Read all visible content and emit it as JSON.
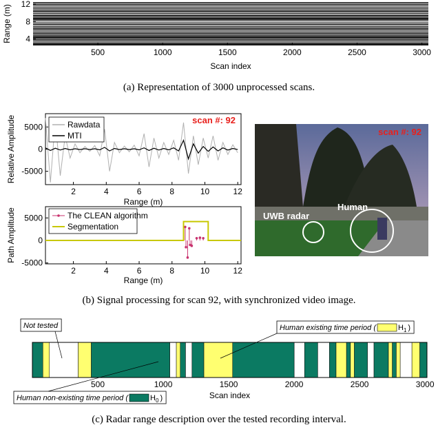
{
  "chart_data": [
    {
      "type": "image",
      "xlabel": "Scan index",
      "ylabel": "Range (m)",
      "xlim": [
        0,
        3050
      ],
      "xticks": [
        500,
        1000,
        1500,
        2000,
        2500,
        3000
      ],
      "ylim": [
        2.5,
        12.5
      ],
      "yticks": [
        4,
        8,
        12
      ]
    },
    {
      "type": "line",
      "xlabel": "Range (m)",
      "ylabel": "Relative Amplitude",
      "annotation": "scan #: 92",
      "xlim": [
        0.3,
        12.2
      ],
      "xticks": [
        2,
        4,
        6,
        8,
        10,
        12
      ],
      "ylim": [
        -8000,
        8000
      ],
      "yticks": [
        -5000,
        0,
        5000
      ],
      "x": [
        0.3,
        0.6,
        0.9,
        1.2,
        1.5,
        1.8,
        2.1,
        2.4,
        2.7,
        3.0,
        3.3,
        3.6,
        3.9,
        4.2,
        4.5,
        4.8,
        5.1,
        5.4,
        5.7,
        6.0,
        6.3,
        6.6,
        6.9,
        7.2,
        7.5,
        7.8,
        8.1,
        8.4,
        8.7,
        9.0,
        9.3,
        9.6,
        9.9,
        10.2,
        10.5,
        10.8,
        11.1,
        11.4,
        11.7,
        12.0
      ],
      "series": [
        {
          "name": "Rawdata",
          "color": "#b0b0b0",
          "values": [
            7000,
            -7500,
            6500,
            -6000,
            3000,
            -2000,
            1200,
            -800,
            600,
            -500,
            800,
            -1500,
            4500,
            -5000,
            1500,
            -800,
            700,
            -600,
            900,
            -1500,
            3500,
            -4000,
            2500,
            -2000,
            1500,
            -1200,
            2000,
            -2500,
            6000,
            -5500,
            3000,
            -3500,
            2500,
            -2000,
            3000,
            -2500,
            1500,
            -1200,
            1000,
            -800
          ]
        },
        {
          "name": "MTI",
          "color": "#000000",
          "values": [
            300,
            -300,
            200,
            -200,
            150,
            -150,
            100,
            -100,
            100,
            -100,
            100,
            -150,
            400,
            -400,
            150,
            -100,
            100,
            -100,
            100,
            -150,
            300,
            -300,
            200,
            -200,
            150,
            -150,
            300,
            -400,
            2000,
            -2200,
            1200,
            -900,
            600,
            -500,
            500,
            -400,
            300,
            -200,
            150,
            -100
          ]
        }
      ]
    },
    {
      "type": "stem",
      "xlabel": "Range (m)",
      "ylabel": "Path Amplitude",
      "xlim": [
        0.3,
        12.2
      ],
      "xticks": [
        2,
        4,
        6,
        8,
        10,
        12
      ],
      "ylim": [
        -5200,
        7500
      ],
      "yticks": [
        -5000,
        0,
        5000
      ],
      "series": [
        {
          "name": "The CLEAN algorithm",
          "color": "#c8326e",
          "x": [
            8.8,
            8.85,
            8.95,
            9.05,
            9.1,
            9.2,
            9.5,
            9.7,
            9.9
          ],
          "values": [
            3000,
            -1500,
            -3800,
            2700,
            -1000,
            -1200,
            500,
            600,
            500
          ]
        },
        {
          "name": "Segmentation",
          "color": "#c8c800",
          "x": [
            0.3,
            8.7,
            8.7,
            10.2,
            10.2,
            12.2
          ],
          "values": [
            0,
            0,
            4200,
            4200,
            0,
            0
          ]
        }
      ]
    },
    {
      "type": "timeline",
      "xlabel": "Scan index",
      "xlim": [
        0,
        3015
      ],
      "xticks": [
        500,
        1000,
        1500,
        2000,
        2500,
        3000
      ],
      "legend_close": ")",
      "series": [
        {
          "name": "Not tested",
          "color": "#ffffff",
          "intervals": [
            [
              130,
              350
            ],
            [
              1050,
              1100
            ],
            [
              1170,
              1220
            ],
            [
              2000,
              2080
            ],
            [
              2180,
              2270
            ],
            [
              2560,
              2610
            ],
            [
              2810,
              2900
            ]
          ]
        },
        {
          "name": "Human existing time period (",
          "symbol": "H",
          "subscript": "1",
          "color": "#ffff70",
          "intervals": [
            [
              80,
              130
            ],
            [
              350,
              450
            ],
            [
              1100,
              1130
            ],
            [
              1310,
              1530
            ],
            [
              2320,
              2400
            ],
            [
              2430,
              2460
            ],
            [
              2720,
              2750
            ],
            [
              2780,
              2810
            ],
            [
              2900,
              2960
            ]
          ]
        },
        {
          "name": "Human non-existing time period (",
          "symbol": "H",
          "subscript": "0",
          "color": "#0b7a62",
          "intervals": [
            [
              0,
              80
            ],
            [
              450,
              1050
            ],
            [
              1130,
              1170
            ],
            [
              1220,
              1310
            ],
            [
              1530,
              2000
            ],
            [
              2080,
              2180
            ],
            [
              2270,
              2320
            ],
            [
              2400,
              2430
            ],
            [
              2460,
              2560
            ],
            [
              2610,
              2720
            ],
            [
              2750,
              2780
            ],
            [
              2960,
              3015
            ]
          ]
        }
      ]
    }
  ],
  "photo": {
    "scan_label": "scan #: 92",
    "radar_label": "UWB radar",
    "human_label": "Human"
  },
  "captions": [
    "(a) Representation of 3000 unprocessed scans.",
    "(b) Signal processing for scan 92, with synchronized video image.",
    "(c) Radar range description over the tested recording interval."
  ]
}
